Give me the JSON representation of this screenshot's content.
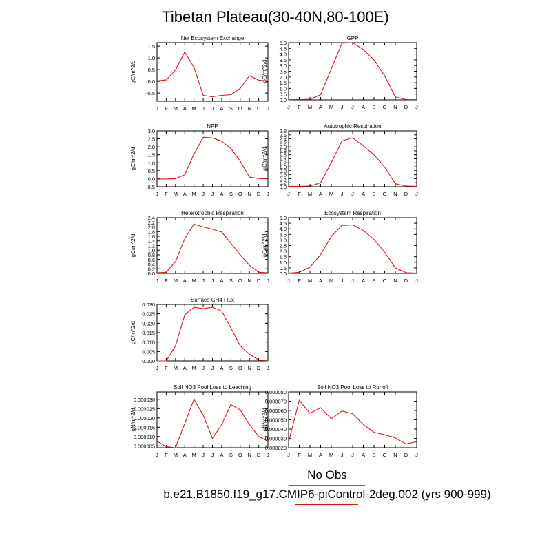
{
  "page": {
    "title": "Tibetan Plateau(30-40N,80-100E)"
  },
  "legend": {
    "items": [
      {
        "label": "No Obs",
        "color": "#4a5de0"
      },
      {
        "label": "b.e21.B1850.f19_g17.CMIP6-piControl-2deg.002 (yrs 900-999)",
        "color": "#e0101a"
      }
    ]
  },
  "chart_data": [
    {
      "type": "line",
      "title": "Net Ecosystem Exchange",
      "ylabel": "gC/m^2/d",
      "x": [
        "J",
        "F",
        "M",
        "A",
        "M",
        "J",
        "J",
        "A",
        "S",
        "O",
        "N",
        "D",
        "J"
      ],
      "ylim": [
        -0.85,
        1.65
      ],
      "yticks": [
        "-0.5",
        "0.0",
        "0.5",
        "1.0",
        "1.5"
      ],
      "series": [
        {
          "color": "#e0101a",
          "values": [
            0.02,
            0.06,
            0.48,
            1.25,
            0.6,
            -0.6,
            -0.66,
            -0.6,
            -0.57,
            -0.3,
            0.24,
            0.05,
            0.02
          ]
        }
      ]
    },
    {
      "type": "line",
      "title": "GPP",
      "ylabel": "gC/m^2/d",
      "x": [
        "J",
        "F",
        "M",
        "A",
        "M",
        "J",
        "J",
        "A",
        "S",
        "O",
        "N",
        "D",
        "J"
      ],
      "ylim": [
        0,
        5.0
      ],
      "yticks": [
        "0.0",
        "0.5",
        "1.0",
        "1.5",
        "2.0",
        "2.5",
        "3.0",
        "3.5",
        "4.0",
        "4.5",
        "5.0"
      ],
      "series": [
        {
          "color": "#e0101a",
          "values": [
            0.02,
            0.03,
            0.05,
            0.45,
            2.7,
            4.95,
            5.0,
            4.4,
            3.5,
            2.1,
            0.25,
            0.03,
            0.02
          ]
        }
      ]
    },
    {
      "type": "line",
      "title": "NPP",
      "ylabel": "gC/m^2/d",
      "x": [
        "J",
        "F",
        "M",
        "A",
        "M",
        "J",
        "J",
        "A",
        "S",
        "O",
        "N",
        "D",
        "J"
      ],
      "ylim": [
        -0.5,
        3.0
      ],
      "yticks": [
        "-0.5",
        "0.0",
        "0.5",
        "1.0",
        "1.5",
        "2.0",
        "2.5",
        "3.0"
      ],
      "series": [
        {
          "color": "#e0101a",
          "values": [
            -0.02,
            -0.02,
            0.0,
            0.25,
            1.55,
            2.6,
            2.56,
            2.35,
            1.9,
            1.1,
            0.1,
            0.01,
            -0.01
          ]
        }
      ]
    },
    {
      "type": "line",
      "title": "Autotrophic Respiration",
      "ylabel": "gC/m^2/d",
      "x": [
        "J",
        "F",
        "M",
        "A",
        "M",
        "J",
        "J",
        "A",
        "S",
        "O",
        "N",
        "D",
        "J"
      ],
      "ylim": [
        0,
        2.8
      ],
      "yticks": [
        "0.0",
        "0.2",
        "0.4",
        "0.6",
        "0.8",
        "1.0",
        "1.2",
        "1.4",
        "1.6",
        "1.8",
        "2.0",
        "2.2",
        "2.4",
        "2.6",
        "2.8"
      ],
      "series": [
        {
          "color": "#e0101a",
          "values": [
            0.02,
            0.02,
            0.03,
            0.2,
            1.2,
            2.3,
            2.45,
            2.05,
            1.6,
            0.98,
            0.15,
            0.03,
            0.02
          ]
        }
      ]
    },
    {
      "type": "line",
      "title": "Heterotrophic Respiration",
      "ylabel": "gC/m^2/d",
      "x": [
        "J",
        "F",
        "M",
        "A",
        "M",
        "J",
        "J",
        "A",
        "S",
        "O",
        "N",
        "D",
        "J"
      ],
      "ylim": [
        0,
        2.4
      ],
      "yticks": [
        "0.0",
        "0.2",
        "0.4",
        "0.6",
        "0.8",
        "1.0",
        "1.2",
        "1.4",
        "1.6",
        "1.8",
        "2.0",
        "2.2",
        "2.4"
      ],
      "series": [
        {
          "color": "#e0101a",
          "values": [
            0.03,
            0.05,
            0.5,
            1.5,
            2.12,
            2.0,
            1.9,
            1.78,
            1.3,
            0.8,
            0.35,
            0.05,
            0.03
          ]
        }
      ]
    },
    {
      "type": "line",
      "title": "Ecosystem Respiration",
      "ylabel": "gC/m^2/d",
      "x": [
        "J",
        "F",
        "M",
        "A",
        "M",
        "J",
        "J",
        "A",
        "S",
        "O",
        "N",
        "D",
        "J"
      ],
      "ylim": [
        0,
        5.0
      ],
      "yticks": [
        "0.0",
        "0.5",
        "1.0",
        "1.5",
        "2.0",
        "2.5",
        "3.0",
        "3.5",
        "4.0",
        "4.5",
        "5.0"
      ],
      "series": [
        {
          "color": "#e0101a",
          "values": [
            0.03,
            0.1,
            0.55,
            1.7,
            3.3,
            4.3,
            4.35,
            3.85,
            3.05,
            1.9,
            0.5,
            0.07,
            0.03
          ]
        }
      ]
    },
    {
      "type": "line",
      "title": "Surface CH4 Flux",
      "ylabel": "gC/m^2/d",
      "x": [
        "J",
        "F",
        "M",
        "A",
        "M",
        "J",
        "J",
        "A",
        "S",
        "O",
        "N",
        "D",
        "J"
      ],
      "ylim": [
        0,
        0.03
      ],
      "yticks": [
        "0.000",
        "0.005",
        "0.010",
        "0.015",
        "0.020",
        "0.025",
        "0.030"
      ],
      "series": [
        {
          "color": "#e0101a",
          "values": [
            0.0,
            0.0,
            0.008,
            0.0245,
            0.0285,
            0.0278,
            0.0285,
            0.0265,
            0.0175,
            0.008,
            0.0035,
            0.0005,
            0.0
          ]
        }
      ]
    },
    {
      "type": "line",
      "title": "Soil NO3 Pool Loss to Leaching",
      "ylabel": "gN/m^2/d",
      "x": [
        "J",
        "F",
        "M",
        "A",
        "M",
        "J",
        "J",
        "A",
        "S",
        "O",
        "N",
        "D",
        "J"
      ],
      "ylim": [
        4e-06,
        3.4e-05
      ],
      "yticks": [
        "0.000005",
        "0.000010",
        "0.000015",
        "0.000020",
        "0.000025",
        "0.000030"
      ],
      "series": [
        {
          "color": "#e0101a",
          "values": [
            7.5e-06,
            4.5e-06,
            4e-06,
            1.7e-05,
            3e-05,
            2.15e-05,
            9e-06,
            1.65e-05,
            2.72e-05,
            2.43e-05,
            1.65e-05,
            1e-05,
            7.5e-06
          ]
        }
      ]
    },
    {
      "type": "line",
      "title": "Soil NO3 Pool Loss to Runoff",
      "ylabel": "gN/m^2/d",
      "x": [
        "J",
        "F",
        "M",
        "A",
        "M",
        "J",
        "J",
        "A",
        "S",
        "O",
        "N",
        "D",
        "J"
      ],
      "ylim": [
        2e-05,
        8e-05
      ],
      "yticks": [
        "0.000020",
        "0.000030",
        "0.000040",
        "0.000050",
        "0.000060",
        "0.000070",
        "0.000080"
      ],
      "series": [
        {
          "color": "#e0101a",
          "values": [
            2.6e-05,
            7.1e-05,
            5.7e-05,
            6.3e-05,
            5.1e-05,
            5.95e-05,
            5.65e-05,
            4.5e-05,
            3.65e-05,
            3.4e-05,
            3.05e-05,
            2.4e-05,
            2.65e-05
          ]
        }
      ]
    }
  ]
}
